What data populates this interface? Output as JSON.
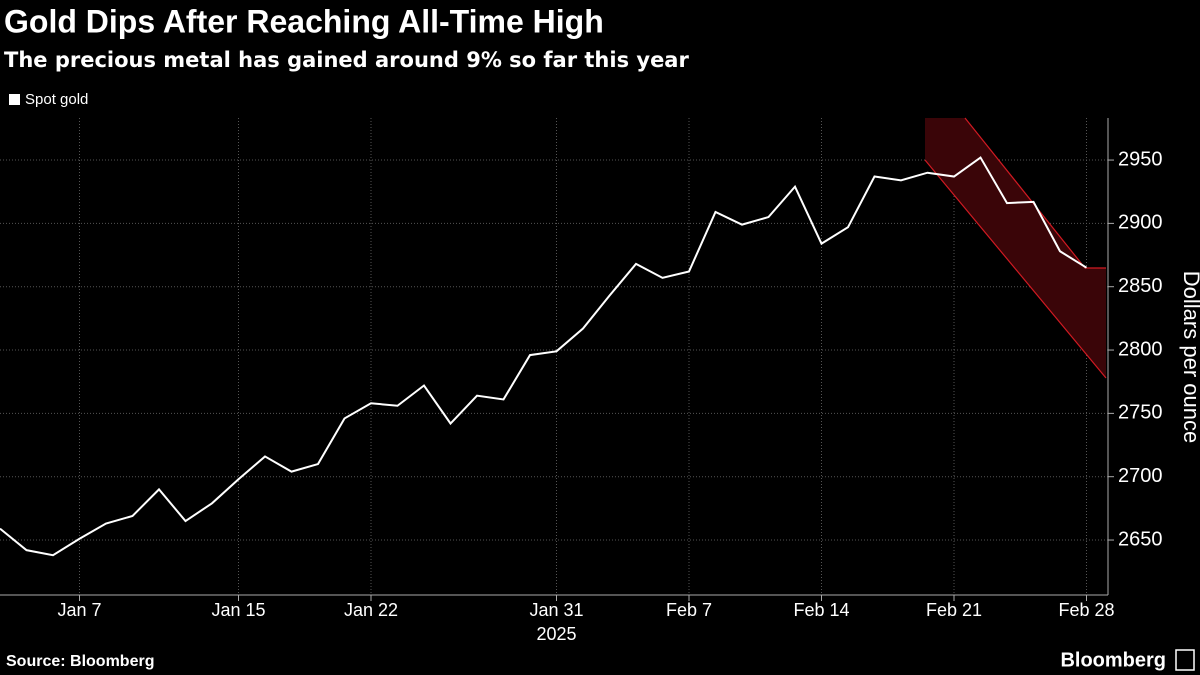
{
  "chart_data": {
    "type": "line",
    "title": "Gold Dips After Reaching All-Time High",
    "subtitle": "The precious metal has gained around 9% so far this year",
    "categories": [
      null,
      null,
      null,
      "Jan 7",
      null,
      null,
      null,
      null,
      null,
      "Jan 15",
      null,
      null,
      null,
      null,
      "Jan 22",
      null,
      null,
      null,
      null,
      null,
      null,
      "Jan 31",
      null,
      null,
      null,
      null,
      "Feb 7",
      null,
      null,
      null,
      null,
      "Feb 14",
      null,
      null,
      null,
      null,
      "Feb 21",
      null,
      null,
      null,
      null,
      "Feb 28"
    ],
    "year_label": "2025",
    "series": [
      {
        "name": "Spot gold",
        "color": "#ffffff",
        "values": [
          2659,
          2642,
          2638,
          2651,
          2663,
          2669,
          2690,
          2665,
          2679,
          2698,
          2716,
          2704,
          2710,
          2746,
          2758,
          2756,
          2772,
          2742,
          2764,
          2761,
          2796,
          2799,
          2817,
          2843,
          2868,
          2857,
          2862,
          2909,
          2899,
          2905,
          2929,
          2884,
          2897,
          2937,
          2934,
          2940,
          2937,
          2952,
          2916,
          2917,
          2878,
          2865
        ]
      }
    ],
    "ylabel": "Dollars per ounce",
    "ylim": [
      2606.6,
      2983.2
    ],
    "yticks": [
      2650,
      2700,
      2750,
      2800,
      2850,
      2900,
      2950
    ],
    "grid": true,
    "legend": "top-left",
    "source": "Source: Bloomberg",
    "logo": "Bloomberg"
  }
}
